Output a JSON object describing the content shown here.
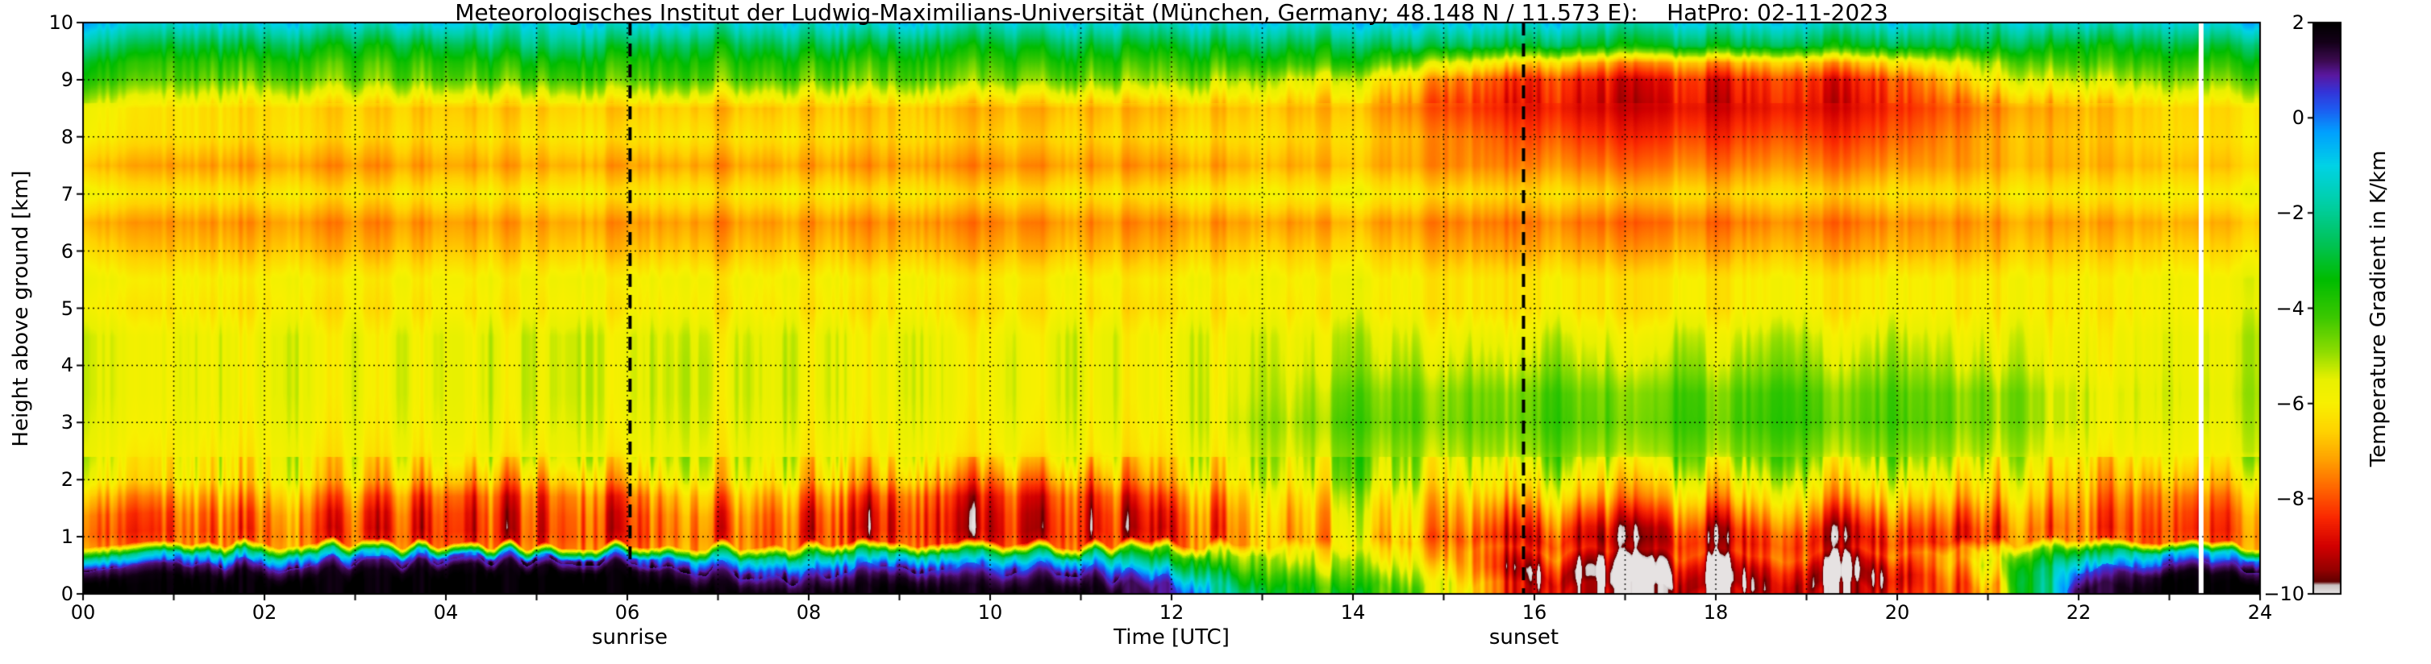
{
  "title": "Meteorologisches Institut der Ludwig-Maximilians-Universität (München, Germany; 48.148 N / 11.573 E):    HatPro: 02-11-2023",
  "axes": {
    "x_label": "Time [UTC]",
    "y_label": "Height above ground [km]",
    "x_ticks": [
      "00",
      "02",
      "04",
      "06",
      "08",
      "10",
      "12",
      "14",
      "16",
      "18",
      "20",
      "22",
      "24"
    ],
    "y_ticks": [
      "0",
      "1",
      "2",
      "3",
      "4",
      "5",
      "6",
      "7",
      "8",
      "9",
      "10"
    ],
    "colorbar_label": "Temperature Gradient in K/km",
    "colorbar_ticks": [
      "2",
      "0",
      "−2",
      "−4",
      "−6",
      "−8",
      "−10"
    ]
  },
  "annotations": {
    "sunrise_label": "sunrise",
    "sunset_label": "sunset",
    "sunrise_time_utc": 6.03,
    "sunset_time_utc": 15.88
  },
  "chart_data": {
    "type": "heatmap",
    "title": "HatPro temperature gradient quicklook 02-11-2023",
    "xlabel": "Time [UTC]",
    "ylabel": "Height above ground [km]",
    "colorbar_label": "Temperature Gradient in K/km",
    "xlim": [
      0,
      24
    ],
    "ylim": [
      0,
      10
    ],
    "value_range": [
      -10,
      2
    ],
    "x_hours": [
      0,
      1,
      2,
      3,
      4,
      5,
      6,
      7,
      8,
      9,
      10,
      11,
      12,
      13,
      14,
      15,
      16,
      17,
      18,
      19,
      20,
      21,
      22,
      23,
      24
    ],
    "y_km": [
      10,
      9.6,
      9.3,
      9,
      8.5,
      8,
      7.5,
      7,
      6.5,
      6,
      5.5,
      5,
      4.5,
      4,
      3.5,
      3,
      2.5,
      2,
      1.7,
      1.4,
      1.1,
      0.9,
      0.7,
      0.5,
      0.3,
      0.15,
      0
    ],
    "values_K_per_km": [
      [
        -0.8,
        -1.2,
        -1.0,
        -1.3,
        -1.0,
        -1.4,
        -1.1,
        -1.5,
        -1.2,
        -1.0,
        -1.4,
        -1.1,
        -1.3,
        -1.0,
        -1.2,
        -0.4,
        -0.9,
        -1.2,
        -1.0,
        -1.3,
        -1.1,
        -1.4,
        -1.0,
        -1.2,
        -1.0
      ],
      [
        -2.4,
        -3.0,
        -2.8,
        -3.2,
        -3.0,
        -2.6,
        -3.0,
        -3.2,
        -2.8,
        -3.0,
        -3.1,
        -2.9,
        -3.0,
        -2.7,
        -3.0,
        -2.2,
        -2.8,
        -3.0,
        -2.9,
        -3.1,
        -3.0,
        -2.8,
        -3.0,
        -2.9,
        -3.0
      ],
      [
        -3.6,
        -4.0,
        -3.9,
        -4.1,
        -4.0,
        -3.8,
        -4.0,
        -4.1,
        -3.9,
        -4.0,
        -4.0,
        -3.9,
        -4.0,
        -3.9,
        -4.1,
        -5.0,
        -6.5,
        -7.0,
        -7.0,
        -7.0,
        -6.5,
        -4.8,
        -3.9,
        -4.0,
        -4.0
      ],
      [
        -4.2,
        -4.5,
        -4.6,
        -4.6,
        -4.6,
        -4.6,
        -4.6,
        -4.7,
        -4.6,
        -4.6,
        -4.7,
        -4.7,
        -4.7,
        -5.2,
        -5.8,
        -7.0,
        -8.3,
        -8.5,
        -8.5,
        -8.5,
        -8.2,
        -5.8,
        -5.0,
        -4.8,
        -4.8
      ],
      [
        -6.0,
        -6.3,
        -6.5,
        -6.6,
        -6.8,
        -6.8,
        -6.8,
        -7.0,
        -6.8,
        -6.8,
        -7.0,
        -7.0,
        -6.8,
        -6.8,
        -7.0,
        -7.8,
        -8.6,
        -8.8,
        -8.8,
        -8.8,
        -8.5,
        -7.4,
        -6.8,
        -6.5,
        -6.5
      ],
      [
        -6.2,
        -6.3,
        -6.4,
        -6.4,
        -6.5,
        -6.4,
        -6.4,
        -6.5,
        -6.4,
        -6.6,
        -6.6,
        -6.6,
        -6.4,
        -6.4,
        -6.6,
        -7.2,
        -8.0,
        -8.2,
        -8.2,
        -8.2,
        -8.0,
        -7.0,
        -6.6,
        -6.4,
        -6.4
      ],
      [
        -7.0,
        -7.2,
        -7.2,
        -7.3,
        -7.2,
        -7.2,
        -7.3,
        -7.4,
        -7.2,
        -7.3,
        -7.4,
        -7.3,
        -7.2,
        -7.0,
        -7.0,
        -7.2,
        -7.4,
        -7.5,
        -7.5,
        -7.5,
        -7.4,
        -7.0,
        -6.8,
        -6.8,
        -6.8
      ],
      [
        -6.0,
        -6.2,
        -6.2,
        -6.3,
        -6.2,
        -6.2,
        -6.3,
        -6.4,
        -6.2,
        -6.3,
        -6.4,
        -6.3,
        -6.2,
        -6.0,
        -6.0,
        -6.2,
        -6.4,
        -6.5,
        -6.5,
        -6.5,
        -6.4,
        -6.2,
        -6.0,
        -6.0,
        -6.0
      ],
      [
        -7.2,
        -7.3,
        -7.3,
        -7.4,
        -7.3,
        -7.3,
        -7.4,
        -7.5,
        -7.3,
        -7.4,
        -7.5,
        -7.4,
        -7.3,
        -7.2,
        -7.2,
        -7.3,
        -7.5,
        -7.6,
        -7.6,
        -7.6,
        -7.5,
        -7.2,
        -7.0,
        -7.0,
        -7.0
      ],
      [
        -6.6,
        -6.8,
        -6.8,
        -6.9,
        -6.8,
        -6.8,
        -6.9,
        -7.0,
        -6.8,
        -6.9,
        -7.0,
        -6.9,
        -6.8,
        -6.6,
        -6.6,
        -6.8,
        -7.0,
        -7.0,
        -7.0,
        -7.0,
        -7.0,
        -6.8,
        -6.5,
        -6.5,
        -6.5
      ],
      [
        -5.9,
        -6.0,
        -6.0,
        -6.0,
        -6.0,
        -6.0,
        -6.0,
        -6.1,
        -6.0,
        -6.0,
        -6.1,
        -6.0,
        -6.0,
        -5.9,
        -5.9,
        -6.0,
        -6.1,
        -6.1,
        -6.1,
        -6.1,
        -6.0,
        -6.0,
        -5.8,
        -5.8,
        -5.8
      ],
      [
        -6.2,
        -6.2,
        -6.2,
        -6.2,
        -6.2,
        -6.2,
        -6.2,
        -6.3,
        -6.2,
        -6.2,
        -6.3,
        -6.2,
        -6.2,
        -6.1,
        -6.0,
        -6.0,
        -6.1,
        -6.1,
        -6.1,
        -6.1,
        -6.0,
        -6.0,
        -5.9,
        -5.9,
        -5.9
      ],
      [
        -5.7,
        -5.7,
        -5.7,
        -5.7,
        -5.7,
        -5.7,
        -5.7,
        -5.8,
        -5.7,
        -5.7,
        -5.8,
        -5.7,
        -5.7,
        -5.6,
        -5.5,
        -5.4,
        -5.4,
        -5.4,
        -5.4,
        -5.4,
        -5.4,
        -5.5,
        -5.6,
        -5.6,
        -5.6
      ],
      [
        -5.7,
        -5.7,
        -5.7,
        -5.7,
        -5.7,
        -5.7,
        -5.7,
        -5.7,
        -5.7,
        -5.7,
        -5.7,
        -5.7,
        -5.7,
        -5.5,
        -5.3,
        -5.0,
        -5.0,
        -5.0,
        -5.0,
        -5.0,
        -5.0,
        -5.2,
        -5.5,
        -5.6,
        -5.6
      ],
      [
        -5.7,
        -5.7,
        -5.7,
        -5.7,
        -5.7,
        -5.7,
        -5.7,
        -5.7,
        -5.7,
        -5.7,
        -5.7,
        -5.7,
        -5.7,
        -5.4,
        -4.8,
        -4.5,
        -4.4,
        -4.4,
        -4.4,
        -4.4,
        -4.5,
        -4.6,
        -5.2,
        -5.5,
        -5.5
      ],
      [
        -5.8,
        -5.8,
        -5.8,
        -5.8,
        -5.8,
        -5.8,
        -5.8,
        -5.8,
        -5.8,
        -5.8,
        -5.8,
        -5.8,
        -5.8,
        -5.2,
        -4.6,
        -4.4,
        -4.3,
        -4.3,
        -4.3,
        -4.3,
        -4.4,
        -4.6,
        -5.2,
        -5.6,
        -5.6
      ],
      [
        -6.0,
        -6.0,
        -6.0,
        -6.0,
        -6.0,
        -6.0,
        -6.0,
        -6.0,
        -6.0,
        -6.0,
        -6.0,
        -6.0,
        -6.0,
        -5.4,
        -5.0,
        -4.8,
        -4.7,
        -4.7,
        -4.7,
        -4.8,
        -4.8,
        -5.0,
        -5.5,
        -5.8,
        -5.8
      ],
      [
        -6.5,
        -6.2,
        -6.2,
        -6.4,
        -7.0,
        -7.4,
        -7.0,
        -6.4,
        -6.6,
        -7.0,
        -7.4,
        -7.4,
        -6.6,
        -5.8,
        -5.4,
        -5.2,
        -5.6,
        -5.8,
        -5.8,
        -5.8,
        -5.8,
        -5.8,
        -6.0,
        -6.8,
        -6.8
      ],
      [
        -7.6,
        -7.2,
        -7.0,
        -7.4,
        -8.2,
        -8.4,
        -8.2,
        -7.4,
        -7.6,
        -8.2,
        -8.4,
        -8.4,
        -7.6,
        -6.4,
        -6.0,
        -5.8,
        -6.4,
        -6.6,
        -6.6,
        -6.6,
        -6.6,
        -6.4,
        -6.4,
        -7.6,
        -7.6
      ],
      [
        -8.4,
        -7.8,
        -7.6,
        -8.0,
        -8.6,
        -8.7,
        -8.6,
        -8.0,
        -8.2,
        -8.6,
        -8.7,
        -8.7,
        -8.2,
        -6.8,
        -6.4,
        -6.2,
        -7.4,
        -7.6,
        -7.6,
        -7.6,
        -7.6,
        -7.2,
        -6.8,
        -8.0,
        -8.2
      ],
      [
        -8.6,
        -8.0,
        -7.8,
        -8.2,
        -8.7,
        -8.8,
        -8.7,
        -8.2,
        -8.4,
        -8.7,
        -8.8,
        -8.8,
        -8.4,
        -7.0,
        -6.6,
        -6.5,
        -8.2,
        -8.5,
        -8.5,
        -8.5,
        -8.4,
        -7.8,
        -7.0,
        -8.2,
        -8.4
      ],
      [
        -8.2,
        -7.8,
        -7.6,
        -8.0,
        -8.4,
        -8.5,
        -8.4,
        -8.0,
        -8.2,
        -8.4,
        -8.5,
        -8.5,
        -8.2,
        -7.0,
        -6.8,
        -6.8,
        -8.5,
        -8.7,
        -8.7,
        -8.7,
        -8.6,
        -7.8,
        -6.8,
        -8.0,
        -8.2
      ],
      [
        -3.0,
        -1.0,
        -2.0,
        -1.0,
        0.0,
        0.2,
        0.0,
        -2.0,
        -3.0,
        -2.0,
        -2.5,
        -2.0,
        -4.0,
        -5.5,
        -6.0,
        -6.4,
        -8.0,
        -8.4,
        -8.4,
        -8.4,
        -8.2,
        -6.0,
        -3.0,
        -1.0,
        -1.0
      ],
      [
        0.8,
        1.2,
        0.8,
        1.2,
        1.6,
        1.7,
        1.6,
        0.4,
        -0.5,
        0.4,
        0.0,
        0.4,
        -2.5,
        -5.0,
        -5.5,
        -6.0,
        -8.8,
        -9.2,
        -9.2,
        -9.2,
        -9.0,
        -5.5,
        -1.0,
        0.8,
        0.8
      ],
      [
        1.8,
        1.9,
        1.8,
        1.9,
        2.0,
        2.0,
        2.0,
        1.4,
        0.8,
        1.4,
        1.0,
        1.4,
        -0.5,
        -4.2,
        -4.8,
        -5.4,
        -9.4,
        -9.7,
        -9.7,
        -9.7,
        -9.4,
        -6.0,
        0.5,
        1.8,
        1.8
      ],
      [
        2.0,
        2.0,
        2.0,
        2.0,
        2.0,
        2.0,
        2.0,
        1.8,
        1.4,
        1.8,
        1.5,
        1.8,
        0.5,
        -3.6,
        -4.2,
        -5.0,
        -9.2,
        -9.8,
        -9.8,
        -9.8,
        -9.2,
        -6.5,
        1.0,
        2.0,
        2.0
      ],
      [
        2.0,
        2.0,
        2.0,
        2.0,
        2.0,
        2.0,
        2.0,
        2.0,
        1.8,
        2.0,
        1.8,
        2.0,
        1.0,
        -3.0,
        -3.8,
        -4.6,
        -8.8,
        -9.2,
        -9.2,
        -9.2,
        -8.8,
        -7.0,
        1.5,
        2.0,
        2.0
      ]
    ],
    "colormap_stops": [
      [
        2.0,
        "#000000"
      ],
      [
        1.6,
        "#140018"
      ],
      [
        1.2,
        "#3c0a50"
      ],
      [
        0.9,
        "#5a18a0"
      ],
      [
        0.55,
        "#3434d8"
      ],
      [
        0.2,
        "#1e5af0"
      ],
      [
        -0.3,
        "#00a0ff"
      ],
      [
        -1.0,
        "#00d2e6"
      ],
      [
        -1.8,
        "#00cfa6"
      ],
      [
        -2.6,
        "#00c35a"
      ],
      [
        -3.4,
        "#00bc00"
      ],
      [
        -4.2,
        "#3cc800"
      ],
      [
        -4.9,
        "#8cdc00"
      ],
      [
        -5.5,
        "#e8f000"
      ],
      [
        -6.0,
        "#f8f000"
      ],
      [
        -6.6,
        "#ffd200"
      ],
      [
        -7.2,
        "#ffa000"
      ],
      [
        -7.8,
        "#ff6400"
      ],
      [
        -8.4,
        "#fa2800"
      ],
      [
        -9.0,
        "#d20000"
      ],
      [
        -9.5,
        "#960000"
      ],
      [
        -9.75,
        "#600000"
      ],
      [
        -9.82,
        "#c8c0c0"
      ],
      [
        -10.0,
        "#e6e2e2"
      ]
    ],
    "missing_data_times_utc": [
      23.35
    ],
    "legend_position": "right-colorbar",
    "grid": "dotted, 1 h vertical and 1 km horizontal"
  }
}
